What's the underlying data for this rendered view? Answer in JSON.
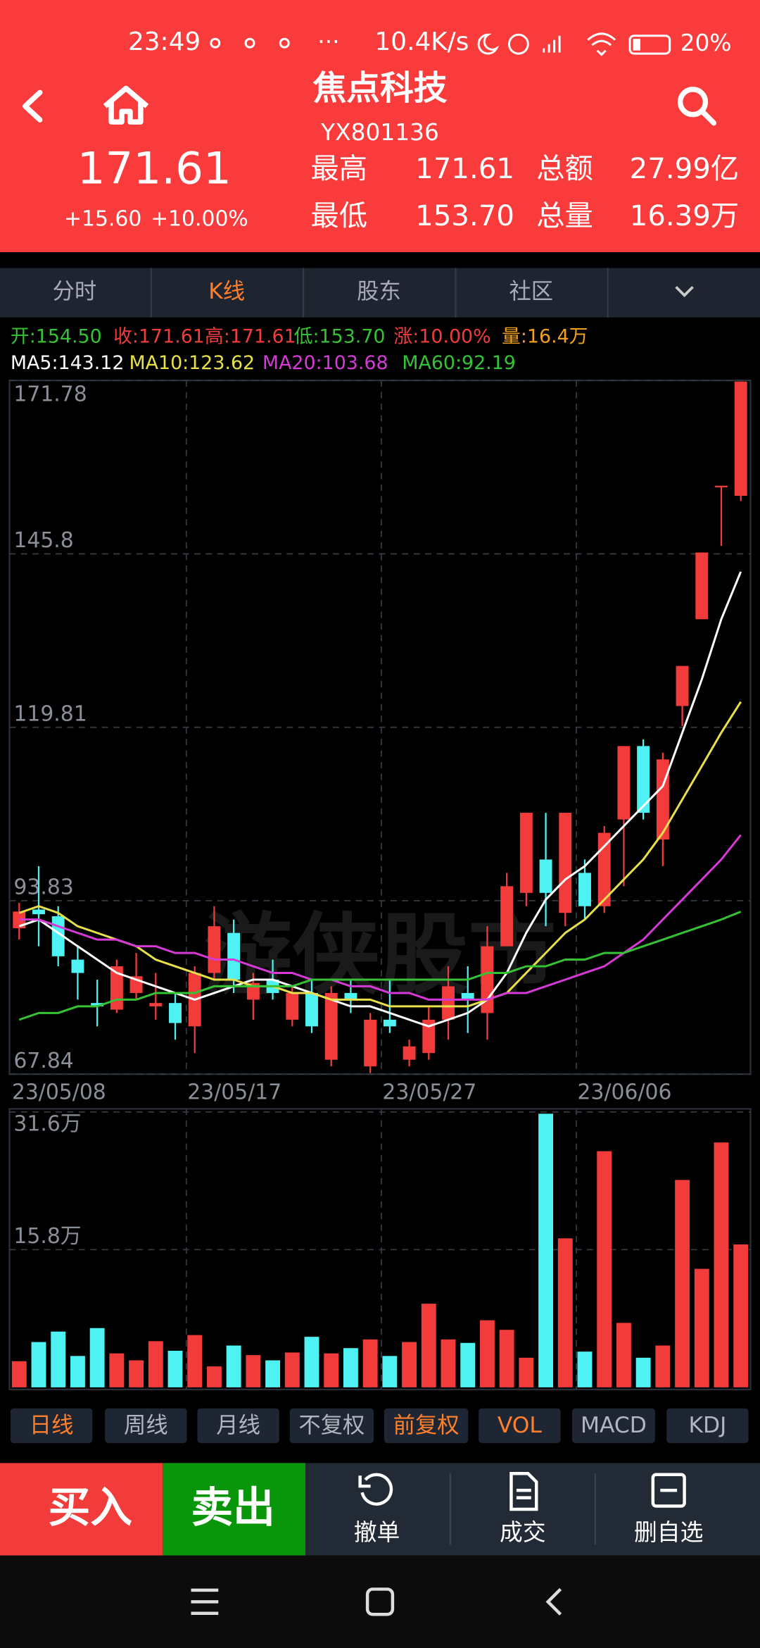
{
  "status_bar": {
    "time": "23:49",
    "dots": "···",
    "speed": "10.4K/s",
    "battery": "20%"
  },
  "header": {
    "name": "焦点科技",
    "code": "YX801136",
    "price": "171.61",
    "change": "+15.60",
    "change_pct": "+10.00%",
    "stats": [
      [
        "最高",
        "171.61",
        "总额",
        "27.99亿"
      ],
      [
        "最低",
        "153.70",
        "总量",
        "16.39万"
      ]
    ]
  },
  "tabs": [
    "分时",
    "K线",
    "股东",
    "社区"
  ],
  "quote_line": [
    {
      "text": "开:154.50",
      "color": "#35c335"
    },
    {
      "text": "收:171.61",
      "color": "#f23c3c"
    },
    {
      "text": "高:171.61",
      "color": "#f23c3c"
    },
    {
      "text": "低:153.70",
      "color": "#35c335"
    },
    {
      "text": "涨:10.00%",
      "color": "#f23c3c"
    },
    {
      "text": "量:16.4万",
      "color": "#f0a020"
    }
  ],
  "watermark": "游侠股市",
  "chart_data": {
    "type": "candlestick",
    "categories": [
      "23/05/08",
      null,
      null,
      null,
      null,
      null,
      null,
      null,
      null,
      "23/05/17",
      null,
      null,
      null,
      null,
      null,
      null,
      null,
      null,
      null,
      "23/05/27",
      null,
      null,
      null,
      null,
      null,
      null,
      null,
      null,
      null,
      "23/06/06",
      null,
      null,
      null,
      null,
      null,
      null,
      null,
      null
    ],
    "open": [
      89.7,
      92.5,
      91.5,
      85,
      78.5,
      77.5,
      80,
      78,
      78.5,
      75,
      83,
      89,
      79,
      82,
      76,
      80,
      70,
      80,
      69,
      76,
      70,
      71,
      76,
      80,
      77,
      87,
      95,
      100,
      92,
      98,
      93,
      106,
      117,
      103,
      123,
      136,
      156.01,
      154.5
    ],
    "close": [
      92.2,
      91.8,
      85.5,
      83,
      78,
      84,
      82.5,
      78.5,
      75.5,
      83,
      90,
      82,
      81.5,
      80,
      80,
      75,
      80,
      79,
      76,
      75,
      72,
      76,
      81,
      79,
      87,
      96,
      107,
      95,
      107,
      93,
      104,
      117,
      107,
      115,
      129,
      146,
      156.01,
      171.61
    ],
    "high": [
      93.5,
      99,
      93,
      87,
      82,
      85,
      86,
      83,
      80,
      84,
      93,
      91,
      83,
      85,
      81,
      82,
      81,
      82,
      77,
      82,
      73,
      78,
      84,
      84,
      90,
      98,
      107,
      107,
      107,
      100,
      105,
      117,
      118,
      116,
      129,
      146,
      156.01,
      171.61
    ],
    "low": [
      88,
      87,
      84,
      79,
      75,
      77,
      79,
      76,
      73,
      71,
      82,
      80,
      76,
      79,
      75,
      74,
      69,
      77,
      68,
      74,
      69,
      70,
      73,
      74,
      73,
      87,
      93,
      90,
      90,
      91,
      92,
      96,
      106,
      99,
      120,
      136,
      147,
      153.7
    ],
    "up_color": "#f23c3c",
    "down_color": "#4ef2f2",
    "ylim": [
      67.84,
      171.78
    ],
    "yticks": [
      171.78,
      145.8,
      119.81,
      93.83,
      67.84
    ],
    "grid": true,
    "series": [
      {
        "name": "MA5:143.12",
        "color": "#ffffff",
        "values": [
          90,
          91,
          89,
          87,
          85,
          83,
          82,
          81,
          80,
          79,
          80,
          81,
          82,
          82,
          81,
          80,
          79,
          78,
          78,
          77,
          76,
          75,
          76,
          77,
          79,
          83,
          89,
          94,
          97,
          99,
          102,
          105,
          108,
          111,
          119,
          127,
          136,
          143.12
        ]
      },
      {
        "name": "MA10:123.62",
        "color": "#e8e04a",
        "values": [
          92,
          93,
          92,
          90,
          89,
          88,
          87,
          85,
          84,
          83,
          82,
          82,
          81,
          81,
          80,
          80,
          79,
          79,
          79,
          78,
          78,
          78,
          78,
          78,
          79,
          80,
          83,
          86,
          89,
          91,
          94,
          97,
          100,
          104,
          109,
          114,
          119,
          123.62
        ]
      },
      {
        "name": "MA20:103.68",
        "color": "#d63ad6",
        "values": [
          91,
          91,
          90,
          89,
          88,
          88,
          87,
          87,
          86,
          86,
          85,
          85,
          84,
          83,
          83,
          82,
          82,
          81,
          81,
          80,
          80,
          79,
          79,
          79,
          79,
          80,
          80,
          81,
          82,
          83,
          84,
          86,
          88,
          91,
          94,
          97,
          100,
          103.68
        ]
      },
      {
        "name": "MA60:92.19",
        "color": "#35c335",
        "values": [
          76,
          77,
          77,
          78,
          78,
          79,
          79,
          80,
          80,
          80,
          81,
          81,
          81,
          81,
          81,
          82,
          82,
          82,
          82,
          82,
          82,
          82,
          82,
          82,
          83,
          83,
          84,
          84,
          85,
          85,
          86,
          86,
          87,
          88,
          89,
          90,
          91,
          92.19
        ]
      }
    ],
    "volume": {
      "values": [
        3.0,
        5.2,
        6.4,
        3.6,
        6.8,
        3.9,
        3.1,
        5.3,
        4.2,
        6.0,
        2.4,
        4.8,
        3.7,
        3.1,
        4.0,
        5.8,
        3.9,
        4.5,
        5.5,
        3.6,
        5.2,
        9.6,
        5.5,
        5.1,
        7.7,
        6.6,
        3.4,
        31.4,
        17.1,
        4.1,
        27.1,
        7.4,
        3.4,
        4.8,
        23.8,
        13.6,
        28.1,
        16.4
      ],
      "ylim": [
        0,
        31.6
      ],
      "yticks": [
        {
          "value": 31.6,
          "label": "31.6万"
        },
        {
          "value": 15.8,
          "label": "15.8万"
        }
      ]
    }
  },
  "period_tabs": [
    {
      "text": "日线",
      "active": true
    },
    {
      "text": "周线",
      "active": false
    },
    {
      "text": "月线",
      "active": false
    },
    {
      "text": "不复权",
      "active": false
    },
    {
      "text": "前复权",
      "active": true
    },
    {
      "text": "VOL",
      "active": true
    },
    {
      "text": "MACD",
      "active": false
    },
    {
      "text": "KDJ",
      "active": false
    }
  ],
  "actions": {
    "buy": "买入",
    "sell": "卖出",
    "cancel": "撤单",
    "deals": "成交",
    "remove": "删自选"
  }
}
